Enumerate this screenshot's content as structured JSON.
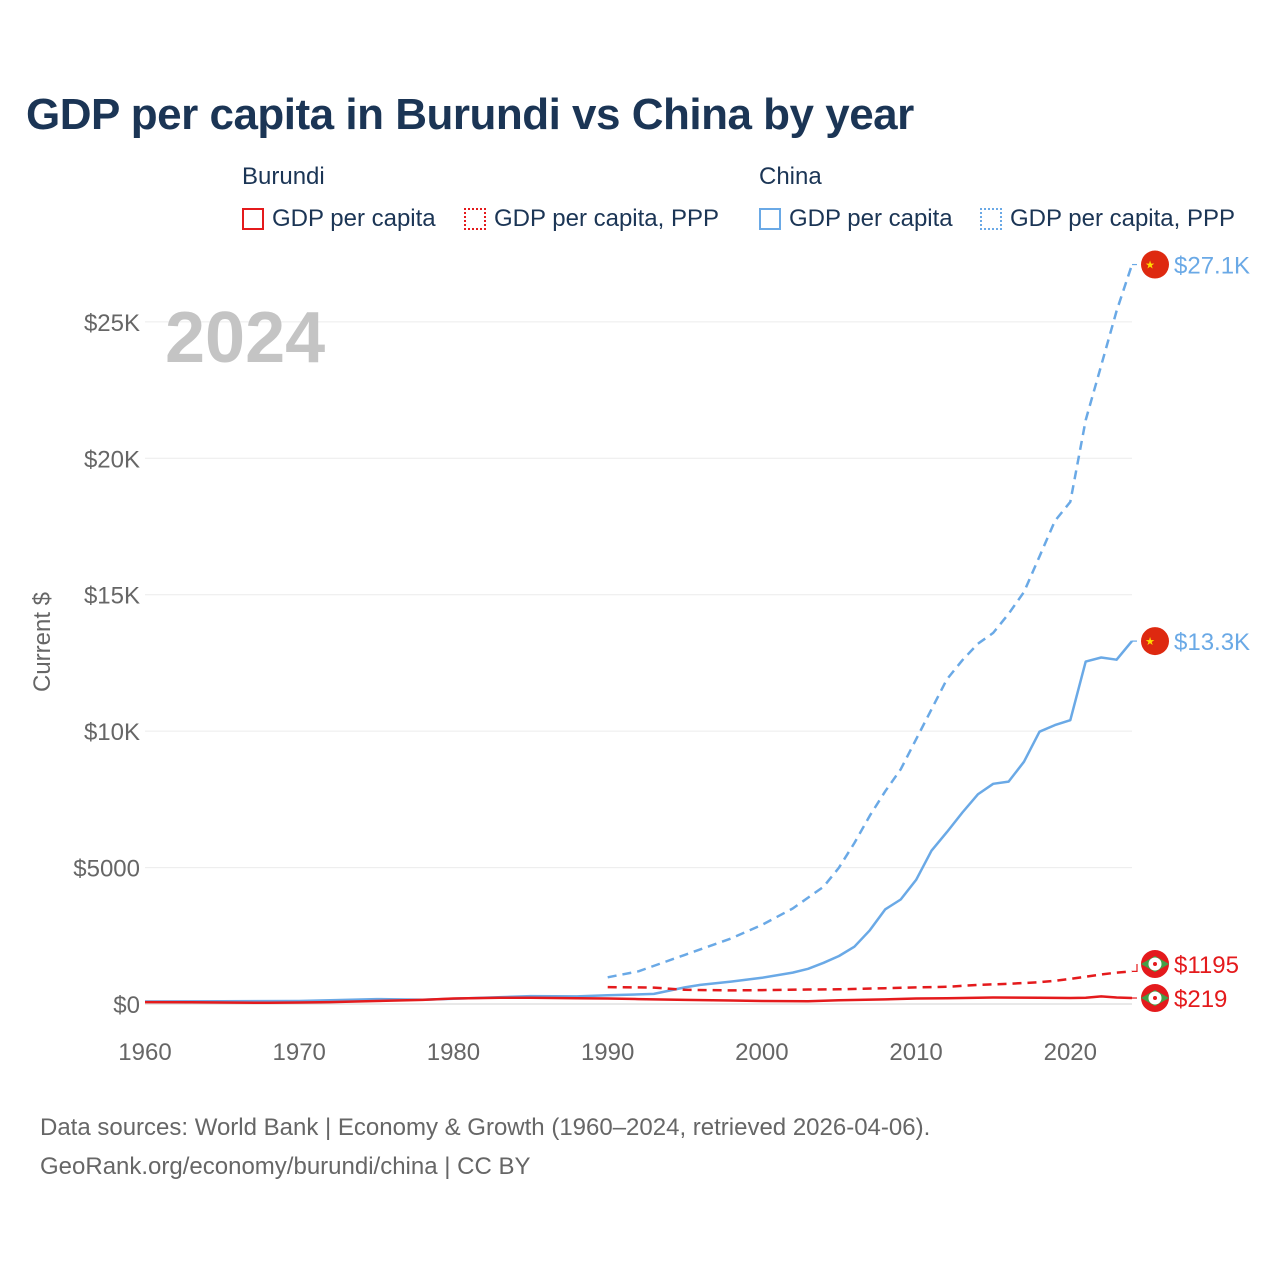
{
  "title": "GDP per capita in Burundi vs China by year",
  "legend": {
    "groups": [
      {
        "country": "Burundi",
        "items": [
          "GDP per capita",
          "GDP per capita, PPP"
        ]
      },
      {
        "country": "China",
        "items": [
          "GDP per capita",
          "GDP per capita, PPP"
        ]
      }
    ]
  },
  "colors": {
    "burundi": "#e41a1c",
    "china": "#6aa9e6"
  },
  "chart_data": {
    "type": "line",
    "title": "GDP per capita in Burundi vs China by year",
    "year_label": "2024",
    "ylabel": "Current $",
    "xlabel": "",
    "xlim": [
      1960,
      2024
    ],
    "ylim": [
      0,
      28000
    ],
    "xticks": [
      1960,
      1970,
      1980,
      1990,
      2000,
      2010,
      2020
    ],
    "yticks": [
      {
        "value": 0,
        "label": "$0"
      },
      {
        "value": 5000,
        "label": "$5000"
      },
      {
        "value": 10000,
        "label": "$10K"
      },
      {
        "value": 15000,
        "label": "$15K"
      },
      {
        "value": 20000,
        "label": "$20K"
      },
      {
        "value": 25000,
        "label": "$25K"
      }
    ],
    "grid": true,
    "series": [
      {
        "name": "Burundi GDP per capita",
        "country": "burundi",
        "style": "solid",
        "end_label": "$219",
        "flag": "burundi-flag-icon",
        "x": [
          1960,
          1963,
          1965,
          1968,
          1970,
          1972,
          1975,
          1978,
          1980,
          1983,
          1985,
          1988,
          1990,
          1992,
          1995,
          1998,
          2000,
          2003,
          2005,
          2008,
          2010,
          2012,
          2015,
          2018,
          2020,
          2021,
          2022,
          2023,
          2024
        ],
        "y": [
          70,
          65,
          55,
          45,
          55,
          70,
          110,
          150,
          200,
          230,
          230,
          210,
          200,
          180,
          150,
          130,
          110,
          100,
          140,
          170,
          200,
          210,
          240,
          230,
          220,
          230,
          280,
          240,
          219
        ]
      },
      {
        "name": "Burundi GDP per capita, PPP",
        "country": "burundi",
        "style": "dashed",
        "end_label": "$1195",
        "flag": "burundi-flag-icon",
        "x": [
          1990,
          1993,
          1995,
          1998,
          2000,
          2003,
          2005,
          2008,
          2010,
          2012,
          2014,
          2016,
          2018,
          2019,
          2020,
          2021,
          2022,
          2023,
          2024
        ],
        "y": [
          620,
          600,
          520,
          500,
          510,
          530,
          540,
          580,
          610,
          630,
          700,
          740,
          800,
          850,
          920,
          1000,
          1080,
          1150,
          1195
        ]
      },
      {
        "name": "China GDP per capita",
        "country": "china",
        "style": "solid",
        "end_label": "$13.3K",
        "flag": "china-flag-icon",
        "x": [
          1960,
          1965,
          1970,
          1975,
          1978,
          1980,
          1985,
          1988,
          1990,
          1993,
          1995,
          1996,
          1998,
          2000,
          2002,
          2003,
          2004,
          2005,
          2006,
          2007,
          2008,
          2009,
          2010,
          2011,
          2012,
          2013,
          2014,
          2015,
          2016,
          2017,
          2018,
          2019,
          2020,
          2021,
          2022,
          2023,
          2024
        ],
        "y": [
          90,
          100,
          110,
          180,
          155,
          195,
          290,
          280,
          320,
          370,
          610,
          700,
          820,
          960,
          1150,
          1290,
          1510,
          1760,
          2100,
          2700,
          3470,
          3830,
          4550,
          5620,
          6300,
          7020,
          7680,
          8070,
          8150,
          8880,
          9980,
          10220,
          10400,
          12550,
          12700,
          12620,
          13300
        ]
      },
      {
        "name": "China GDP per capita, PPP",
        "country": "china",
        "style": "dashed",
        "end_label": "$27.1K",
        "flag": "china-flag-icon",
        "x": [
          1990,
          1992,
          1995,
          1998,
          2000,
          2002,
          2004,
          2005,
          2006,
          2007,
          2008,
          2009,
          2010,
          2011,
          2012,
          2013,
          2014,
          2015,
          2016,
          2017,
          2018,
          2019,
          2020,
          2021,
          2022,
          2023,
          2024
        ],
        "y": [
          980,
          1200,
          1800,
          2400,
          2900,
          3500,
          4300,
          5000,
          5900,
          6900,
          7800,
          8600,
          9700,
          10800,
          11900,
          12600,
          13200,
          13600,
          14300,
          15100,
          16400,
          17700,
          18400,
          21400,
          23400,
          25400,
          27100
        ]
      }
    ]
  },
  "sources": {
    "line1": "Data sources: World Bank | Economy & Growth (1960–2024, retrieved 2026-04-06).",
    "line2": "GeoRank.org/economy/burundi/china | CC BY"
  }
}
